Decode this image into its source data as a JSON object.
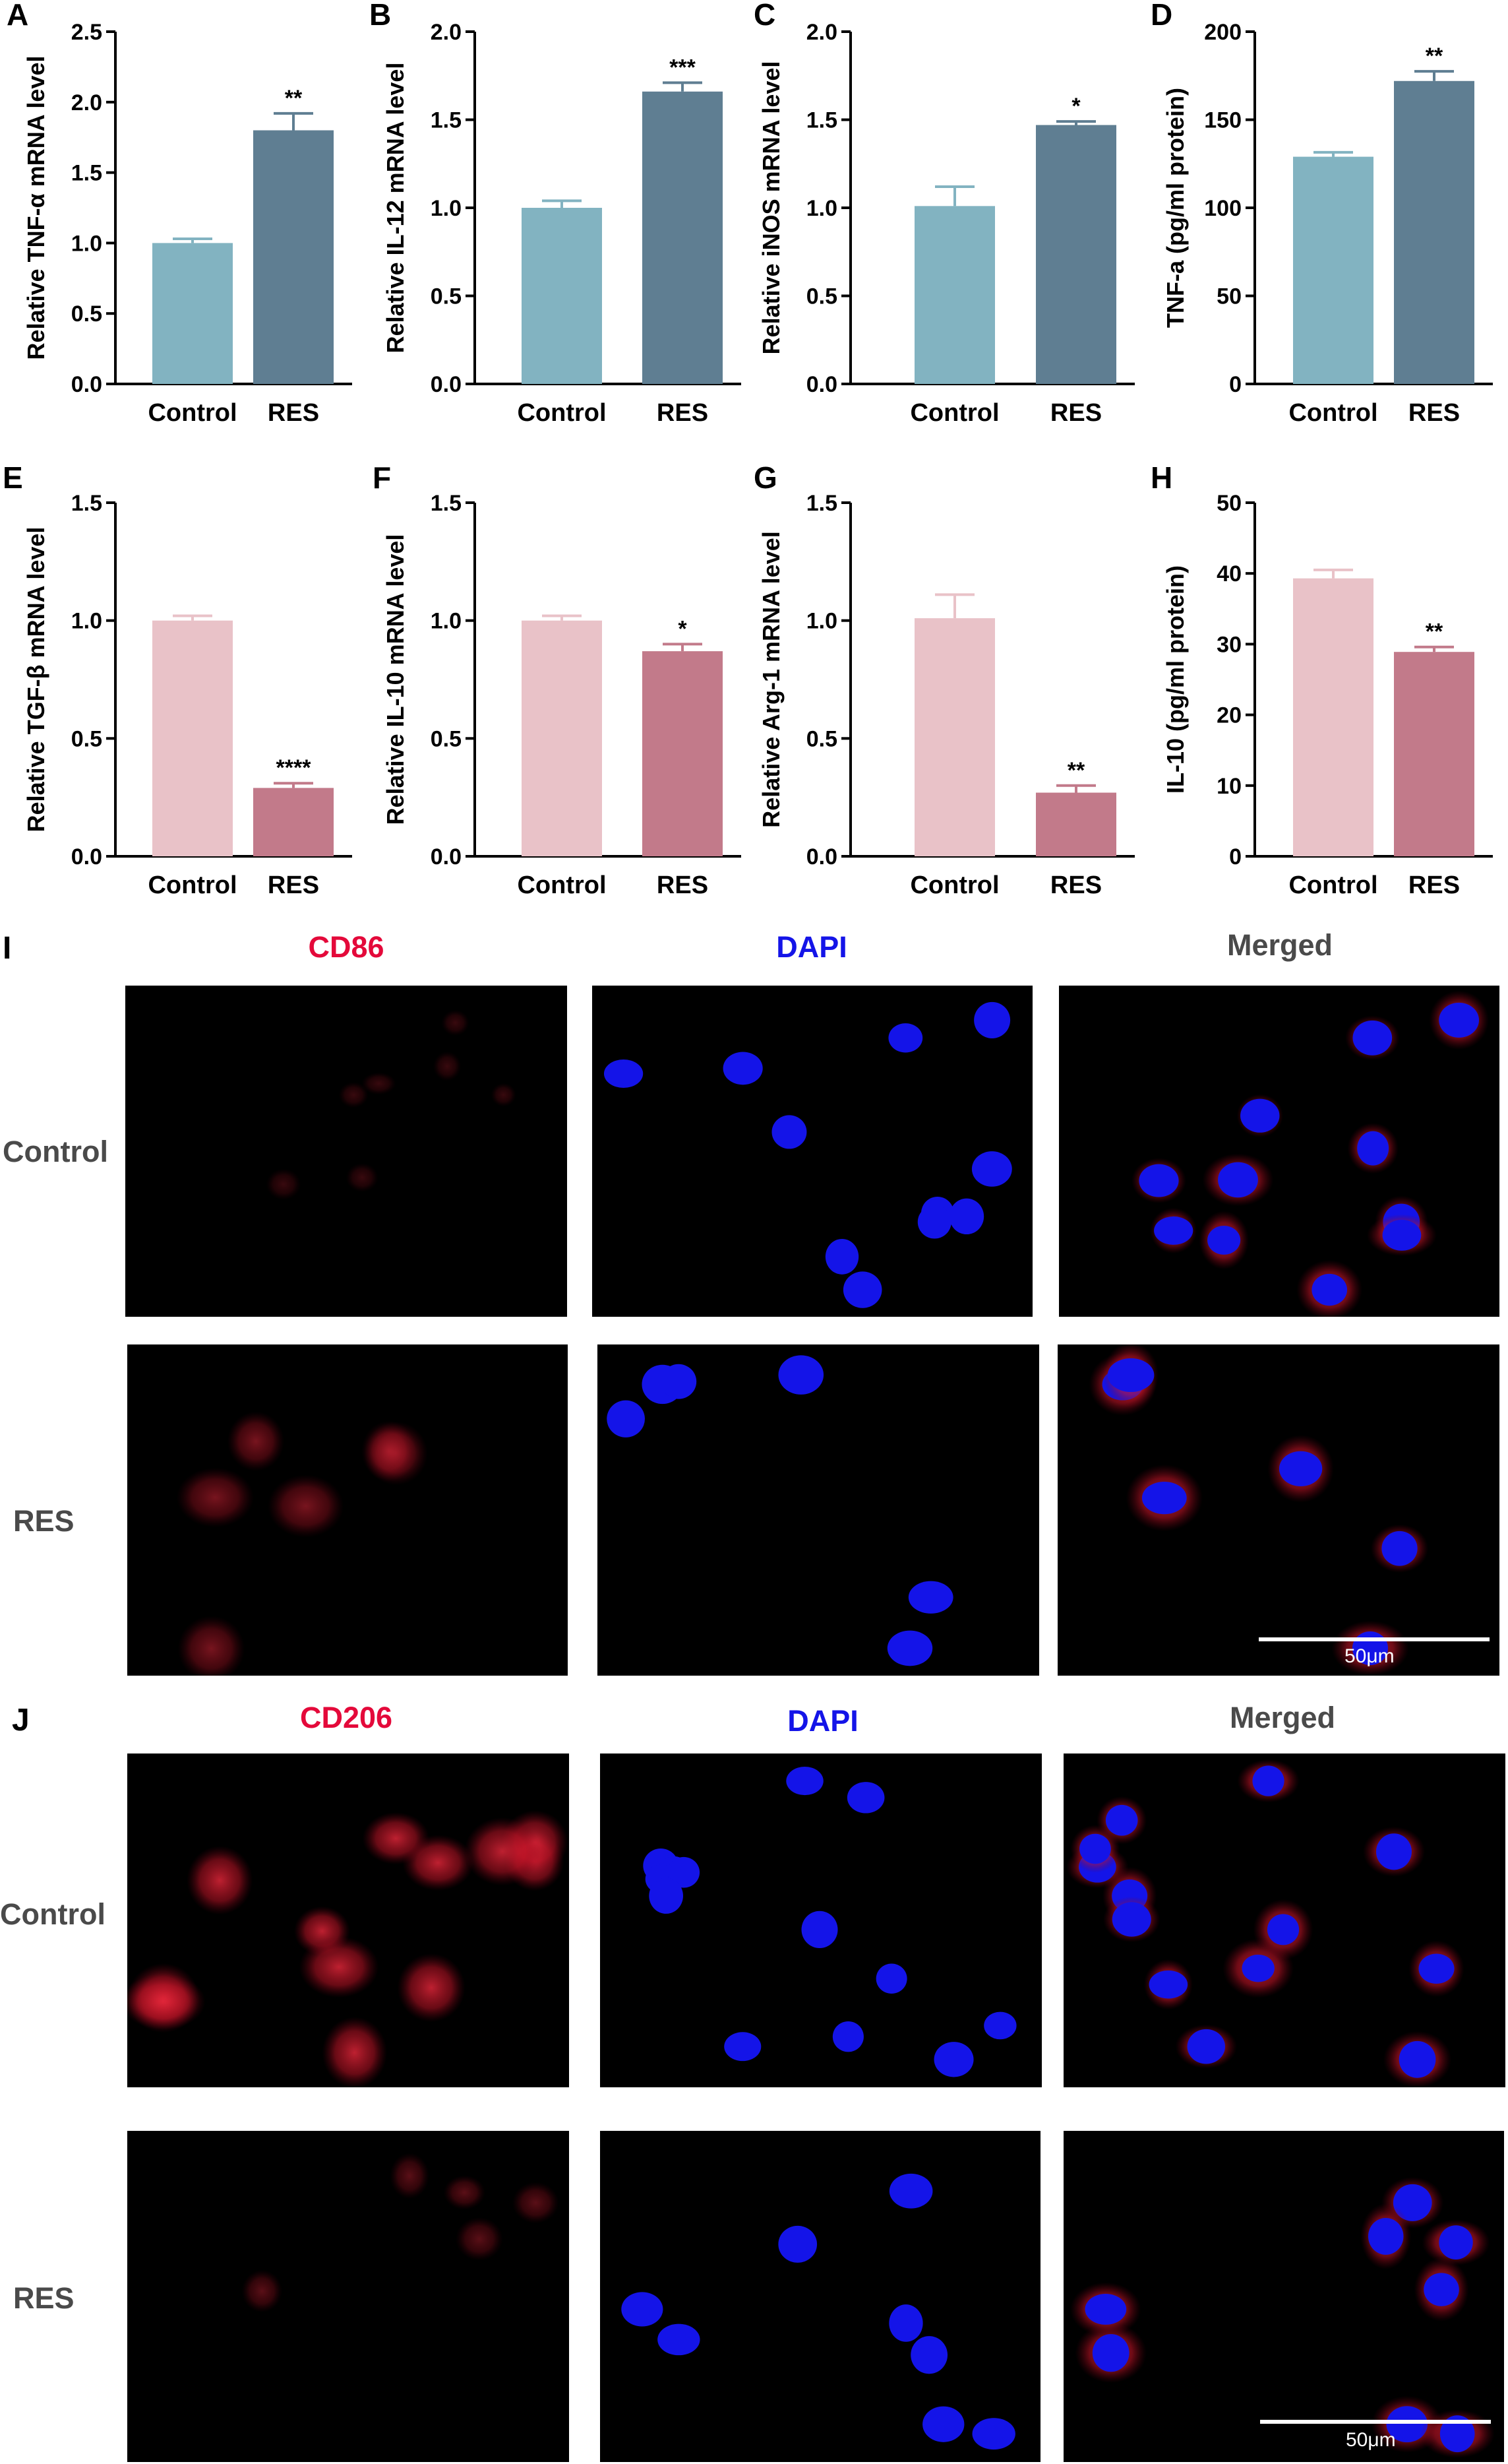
{
  "colors": {
    "teal_light": "#82b3c1",
    "teal_dark": "#5f7e92",
    "pink_light": "#e9c2c8",
    "pink_dark": "#c27a8a",
    "cd_red": "#e4093a",
    "dapi_blue": "#1414e8",
    "merged_grey": "#4a4a4a"
  },
  "chart_data": [
    {
      "panel": "A",
      "type": "bar",
      "categories": [
        "Control",
        "RES"
      ],
      "values": [
        1.0,
        1.8
      ],
      "errors": [
        0.03,
        0.12
      ],
      "significance": [
        "",
        "**"
      ],
      "ylabel": "Relative TNF-α  mRNA level",
      "ylim": [
        0,
        2.5
      ],
      "yticks": [
        "0.0",
        "0.5",
        "1.0",
        "1.5",
        "2.0",
        "2.5"
      ],
      "colors": [
        "#82b3c1",
        "#5f7e92"
      ]
    },
    {
      "panel": "B",
      "type": "bar",
      "categories": [
        "Control",
        "RES"
      ],
      "values": [
        1.0,
        1.66
      ],
      "errors": [
        0.04,
        0.05
      ],
      "significance": [
        "",
        "***"
      ],
      "ylabel": "Relative IL-12 mRNA level",
      "ylim": [
        0,
        2.0
      ],
      "yticks": [
        "0.0",
        "0.5",
        "1.0",
        "1.5",
        "2.0"
      ],
      "colors": [
        "#82b3c1",
        "#5f7e92"
      ]
    },
    {
      "panel": "C",
      "type": "bar",
      "categories": [
        "Control",
        "RES"
      ],
      "values": [
        1.01,
        1.47
      ],
      "errors": [
        0.11,
        0.02
      ],
      "significance": [
        "",
        "*"
      ],
      "ylabel": "Relative iNOS mRNA level",
      "ylim": [
        0,
        2.0
      ],
      "yticks": [
        "0.0",
        "0.5",
        "1.0",
        "1.5",
        "2.0"
      ],
      "colors": [
        "#82b3c1",
        "#5f7e92"
      ]
    },
    {
      "panel": "D",
      "type": "bar",
      "categories": [
        "Control",
        "RES"
      ],
      "values": [
        129,
        172
      ],
      "errors": [
        2.5,
        5.5
      ],
      "significance": [
        "",
        "**"
      ],
      "ylabel": "TNF-a (pg/ml protein)",
      "ylim": [
        0,
        200
      ],
      "yticks": [
        "0",
        "50",
        "100",
        "150",
        "200"
      ],
      "colors": [
        "#82b3c1",
        "#5f7e92"
      ]
    },
    {
      "panel": "E",
      "type": "bar",
      "categories": [
        "Control",
        "RES"
      ],
      "values": [
        1.0,
        0.29
      ],
      "errors": [
        0.02,
        0.02
      ],
      "significance": [
        "",
        "****"
      ],
      "ylabel": "Relative TGF-β mRNA level",
      "ylim": [
        0,
        1.5
      ],
      "yticks": [
        "0.0",
        "0.5",
        "1.0",
        "1.5"
      ],
      "colors": [
        "#e9c2c8",
        "#c27a8a"
      ]
    },
    {
      "panel": "F",
      "type": "bar",
      "categories": [
        "Control",
        "RES"
      ],
      "values": [
        1.0,
        0.87
      ],
      "errors": [
        0.02,
        0.03
      ],
      "significance": [
        "",
        "*"
      ],
      "ylabel": "Relative IL-10 mRNA level",
      "ylim": [
        0,
        1.5
      ],
      "yticks": [
        "0.0",
        "0.5",
        "1.0",
        "1.5"
      ],
      "colors": [
        "#e9c2c8",
        "#c27a8a"
      ]
    },
    {
      "panel": "G",
      "type": "bar",
      "categories": [
        "Control",
        "RES"
      ],
      "values": [
        1.01,
        0.27
      ],
      "errors": [
        0.1,
        0.03
      ],
      "significance": [
        "",
        "**"
      ],
      "ylabel": "Relative Arg-1 mRNA level",
      "ylim": [
        0,
        1.5
      ],
      "yticks": [
        "0.0",
        "0.5",
        "1.0",
        "1.5"
      ],
      "colors": [
        "#e9c2c8",
        "#c27a8a"
      ]
    },
    {
      "panel": "H",
      "type": "bar",
      "categories": [
        "Control",
        "RES"
      ],
      "values": [
        39.3,
        28.9
      ],
      "errors": [
        1.2,
        0.7
      ],
      "significance": [
        "",
        "**"
      ],
      "ylabel": "IL-10 (pg/ml protein)",
      "ylim": [
        0,
        50
      ],
      "yticks": [
        "0",
        "10",
        "20",
        "30",
        "40",
        "50"
      ],
      "colors": [
        "#e9c2c8",
        "#c27a8a"
      ]
    }
  ],
  "images": {
    "I": {
      "letter": "I",
      "columns": [
        "CD86",
        "DAPI",
        "Merged"
      ],
      "rows": [
        "Control",
        "RES"
      ],
      "scalebar": "50μm"
    },
    "J": {
      "letter": "J",
      "columns": [
        "CD206",
        "DAPI",
        "Merged"
      ],
      "rows": [
        "Control",
        "RES"
      ],
      "scalebar": "50μm"
    }
  }
}
